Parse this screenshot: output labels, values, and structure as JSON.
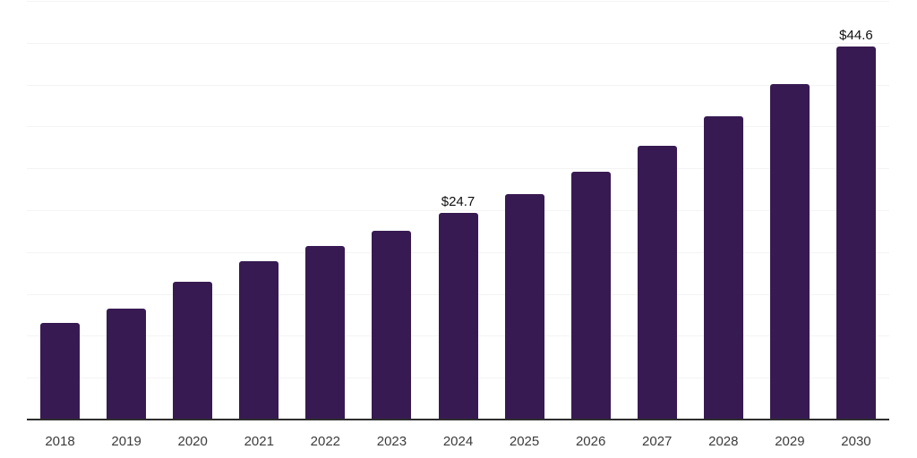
{
  "chart_data": {
    "type": "bar",
    "title": "",
    "xlabel": "",
    "ylabel": "",
    "categories": [
      "2018",
      "2019",
      "2020",
      "2021",
      "2022",
      "2023",
      "2024",
      "2025",
      "2026",
      "2027",
      "2028",
      "2029",
      "2030"
    ],
    "values": [
      11.5,
      13.3,
      16.4,
      18.9,
      20.7,
      22.5,
      24.7,
      26.9,
      29.6,
      32.7,
      36.2,
      40.1,
      44.6
    ],
    "bar_labels": {
      "2024": "$24.7",
      "2030": "$44.6"
    },
    "ylim": [
      0,
      50
    ],
    "gridline_step": 5,
    "grid": true,
    "legend": "none",
    "colors": {
      "bar": "#371a52",
      "gridline": "#f4f4f4",
      "axis_line": "#2e2e2e",
      "value_label": "#0f0f0f",
      "tick_label": "#3c3c3c",
      "background": "#ffffff"
    }
  }
}
